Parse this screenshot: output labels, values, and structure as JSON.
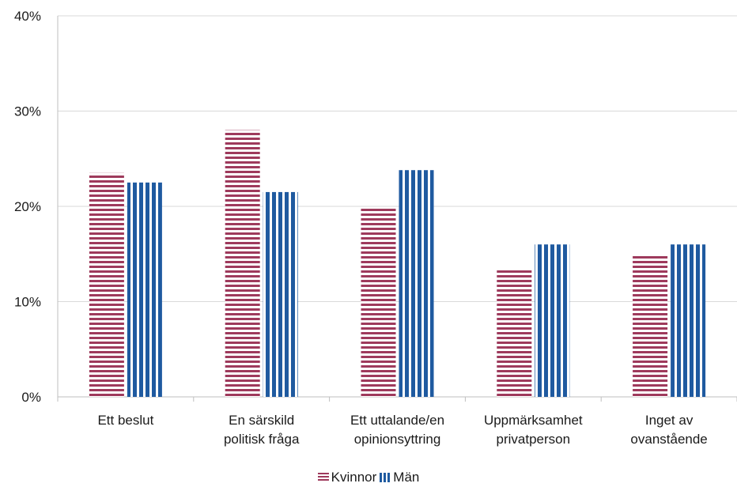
{
  "chart_data": {
    "type": "bar",
    "categories": [
      [
        "Ett beslut"
      ],
      [
        "En särskild",
        "politisk fråga"
      ],
      [
        "Ett uttalande/en",
        "opinionsyttring"
      ],
      [
        "Uppmärksamhet",
        "privatperson"
      ],
      [
        "Inget av",
        "ovanstående"
      ]
    ],
    "series": [
      {
        "name": "Kvinnor",
        "values": [
          23.5,
          28,
          19.8,
          13.3,
          15
        ],
        "color": "#9e3a5c"
      },
      {
        "name": "Män",
        "values": [
          22.5,
          21.5,
          23.8,
          16,
          16
        ],
        "color": "#1f5aa0"
      }
    ],
    "ylim": [
      0,
      40
    ],
    "yticks": [
      "0%",
      "10%",
      "20%",
      "30%",
      "40%"
    ],
    "ytick_values": [
      0,
      10,
      20,
      30,
      40
    ],
    "grid": true,
    "legend_position": "bottom"
  }
}
